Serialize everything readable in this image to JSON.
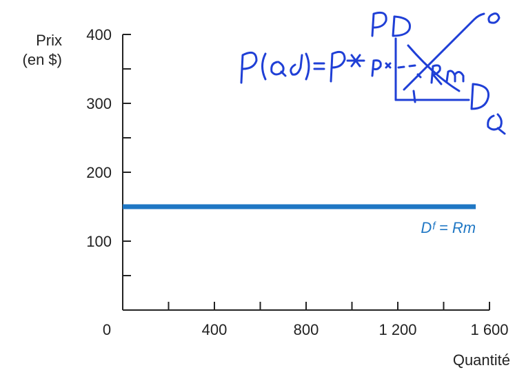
{
  "chart_data": {
    "type": "line",
    "ylabel_line1": "Prix",
    "ylabel_line2": "(en $)",
    "xlabel": "Quantité",
    "xlim": [
      0,
      1600
    ],
    "ylim": [
      0,
      400
    ],
    "x_ticks": [
      0,
      200,
      400,
      600,
      800,
      1000,
      1200,
      1400,
      1600
    ],
    "x_tick_labels": [
      "0",
      "400",
      "800",
      "1 200",
      "1 600"
    ],
    "x_tick_label_values": [
      0,
      400,
      800,
      1200,
      1600
    ],
    "y_ticks": [
      0,
      50,
      100,
      150,
      200,
      250,
      300,
      350,
      400
    ],
    "y_tick_labels": [
      "100",
      "200",
      "300",
      "400"
    ],
    "y_tick_label_values": [
      100,
      200,
      300,
      400
    ],
    "grid": false,
    "series": [
      {
        "name": "Dᶠ = Rm",
        "color": "#1f77c4",
        "x": [
          0,
          1540
        ],
        "y": [
          150,
          150
        ]
      }
    ],
    "annotations": [
      {
        "text": "P(Qd) = P*",
        "kind": "handwritten",
        "color": "#1f3fd6"
      }
    ]
  },
  "colors": {
    "axis": "#222222",
    "series": "#1f77c4",
    "ink": "#1f3fd6"
  }
}
